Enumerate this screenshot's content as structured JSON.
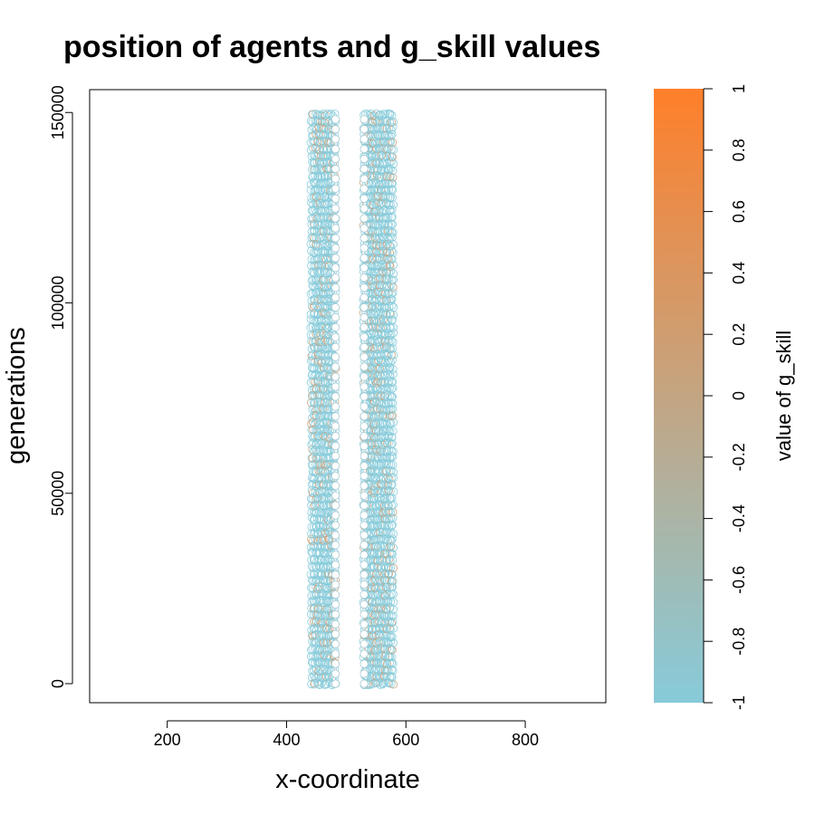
{
  "chart_data": {
    "type": "scatter",
    "title": "position of agents and g_skill values",
    "xlabel": "x-coordinate",
    "ylabel": "generations",
    "xlim": [
      70,
      935
    ],
    "ylim": [
      -5000,
      156000
    ],
    "x_ticks": [
      200,
      400,
      600,
      800
    ],
    "y_ticks": [
      0,
      50000,
      100000,
      150000
    ],
    "x_tick_labels": [
      "200",
      "400",
      "600",
      "800"
    ],
    "y_tick_labels": [
      "0",
      "50000",
      "100000",
      "150000"
    ],
    "marker": "open-circle",
    "grid": false,
    "series": [
      {
        "x_range": [
          442,
          482
        ],
        "y_range": [
          0,
          150000
        ],
        "dominant_g_skill": -1,
        "dominant_color": "#87CBDA",
        "accent_color": "#C9A27E"
      },
      {
        "x_range": [
          530,
          578
        ],
        "y_range": [
          0,
          150000
        ],
        "dominant_g_skill": -0.8,
        "dominant_color": "#87CBDA",
        "accent_color": "#C9A27E"
      }
    ],
    "colorbar": {
      "label": "value of g_skill",
      "min": -1,
      "max": 1,
      "ticks": [
        -1,
        -0.8,
        -0.6,
        -0.4,
        -0.2,
        0,
        0.2,
        0.4,
        0.6,
        0.8,
        1
      ],
      "tick_labels": [
        "-1",
        "-0.8",
        "-0.6",
        "-0.4",
        "-0.2",
        "0",
        "0.2",
        "0.4",
        "0.6",
        "0.8",
        "1"
      ],
      "low_color": "#87CBDA",
      "high_color": "#FF7F2A"
    }
  }
}
